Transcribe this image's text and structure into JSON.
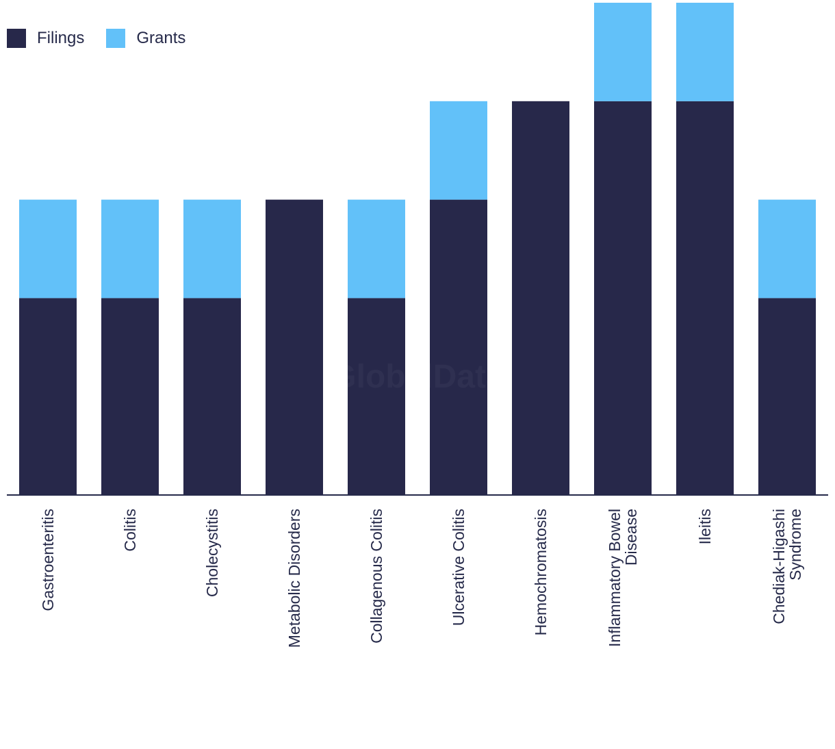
{
  "chart_data": {
    "type": "bar",
    "stacked": true,
    "categories": [
      "Gastroenteritis",
      "Colitis",
      "Cholecystitis",
      "Metabolic Disorders",
      "Collagenous Colitis",
      "Ulcerative Colitis",
      "Hemochromatosis",
      "Inflammatory Bowel Disease",
      "Ileitis",
      "Chediak-Higashi Syndrome"
    ],
    "category_lines": [
      [
        "Gastroenteritis"
      ],
      [
        "Colitis"
      ],
      [
        "Cholecystitis"
      ],
      [
        "Metabolic Disorders"
      ],
      [
        "Collagenous Colitis"
      ],
      [
        "Ulcerative Colitis"
      ],
      [
        "Hemochromatosis"
      ],
      [
        "Inflammatory Bowel",
        "Disease"
      ],
      [
        "Ileitis"
      ],
      [
        "Chediak-Higashi",
        "Syndrome"
      ]
    ],
    "series": [
      {
        "name": "Filings",
        "color": "#27284a",
        "values": [
          2,
          2,
          2,
          3,
          2,
          3,
          4,
          4,
          4,
          2
        ]
      },
      {
        "name": "Grants",
        "color": "#62c1f9",
        "values": [
          1,
          1,
          1,
          0,
          1,
          1,
          0,
          1,
          1,
          1
        ]
      }
    ],
    "ylim": [
      0,
      5
    ],
    "legend_position": "top-left",
    "watermark": "GlobalData",
    "grid": false,
    "title": "",
    "xlabel": "",
    "ylabel": ""
  }
}
